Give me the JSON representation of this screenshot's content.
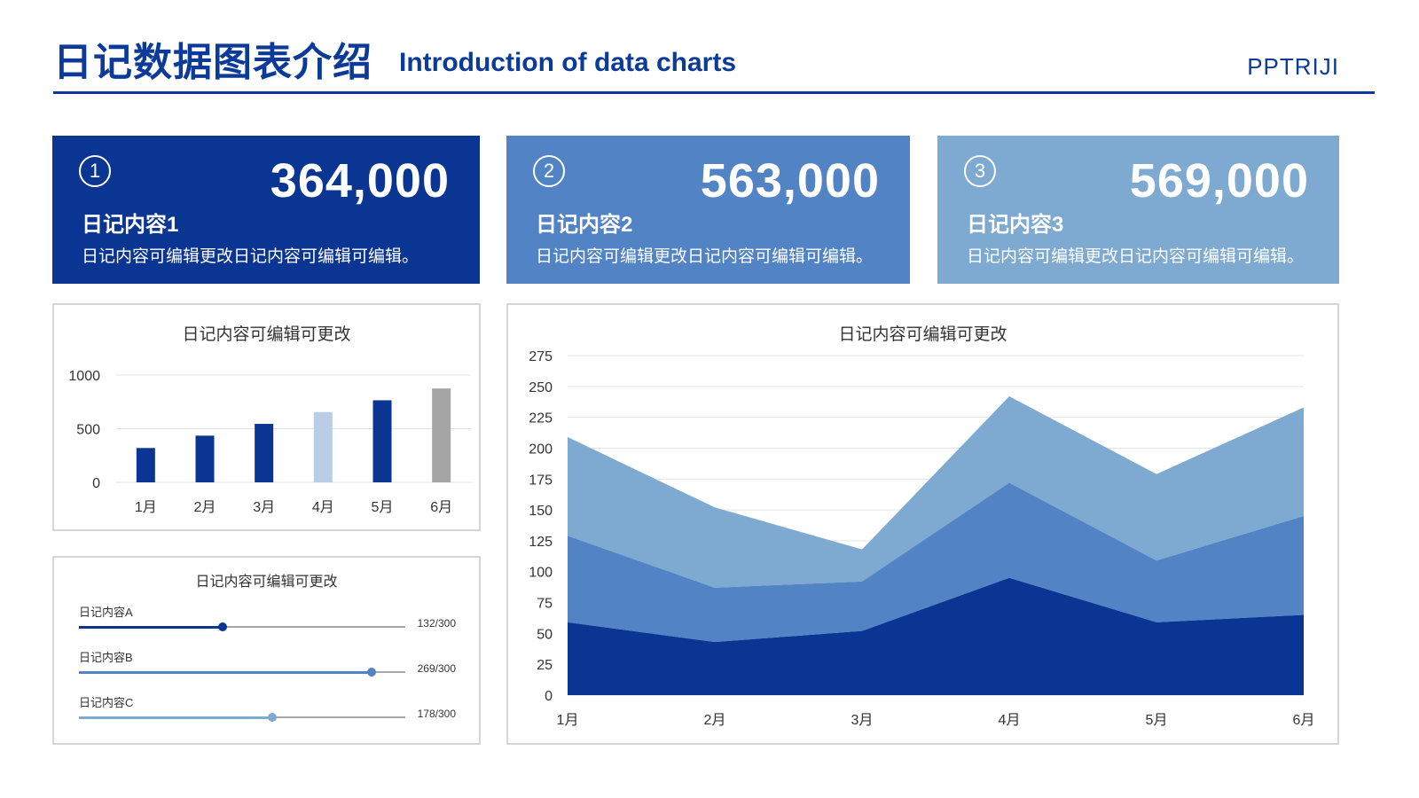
{
  "header": {
    "title_zh": "日记数据图表介绍",
    "title_en": "Introduction of data charts",
    "brand": "PPTRIJI"
  },
  "cards": [
    {
      "index": "1",
      "value": "364,000",
      "title": "日记内容1",
      "desc": "日记内容可编辑更改日记内容可编辑可编辑。",
      "color": "#0a3592"
    },
    {
      "index": "2",
      "value": "563,000",
      "title": "日记内容2",
      "desc": "日记内容可编辑更改日记内容可编辑可编辑。",
      "color": "#5283c5"
    },
    {
      "index": "3",
      "value": "569,000",
      "title": "日记内容3",
      "desc": "日记内容可编辑更改日记内容可编辑可编辑。",
      "color": "#7ea9d0"
    }
  ],
  "progress": {
    "title": "日记内容可编辑可更改",
    "items": [
      {
        "label": "日记内容A",
        "value": 132,
        "max": 300,
        "text": "132/300",
        "color": "#0a3592"
      },
      {
        "label": "日记内容B",
        "value": 269,
        "max": 300,
        "text": "269/300",
        "color": "#5283c5"
      },
      {
        "label": "日记内容C",
        "value": 178,
        "max": 300,
        "text": "178/300",
        "color": "#7ea9d0"
      }
    ]
  },
  "chart_data": [
    {
      "type": "bar",
      "title": "日记内容可编辑可更改",
      "categories": [
        "1月",
        "2月",
        "3月",
        "4月",
        "5月",
        "6月"
      ],
      "values": [
        320,
        435,
        545,
        655,
        765,
        875
      ],
      "colors": [
        "#0a3592",
        "#0a3592",
        "#0a3592",
        "#bacde6",
        "#0a3592",
        "#a5a5a5"
      ],
      "yticks": [
        0,
        500,
        1000
      ],
      "ylim": [
        0,
        1000
      ],
      "grid": true
    },
    {
      "type": "area",
      "stacked": true,
      "title": "日记内容可编辑可更改",
      "categories": [
        "1月",
        "2月",
        "3月",
        "4月",
        "5月",
        "6月"
      ],
      "series": [
        {
          "values": [
            59,
            43,
            52,
            95,
            59,
            65
          ],
          "color": "#0a3592"
        },
        {
          "values": [
            70,
            44,
            40,
            77,
            50,
            80
          ],
          "color": "#5283c5"
        },
        {
          "values": [
            80,
            65,
            26,
            70,
            70,
            88
          ],
          "color": "#7ea9d0"
        }
      ],
      "yticks": [
        0,
        25,
        50,
        75,
        100,
        125,
        150,
        175,
        200,
        225,
        250,
        275
      ],
      "ylim": [
        0,
        275
      ],
      "grid": true
    }
  ]
}
